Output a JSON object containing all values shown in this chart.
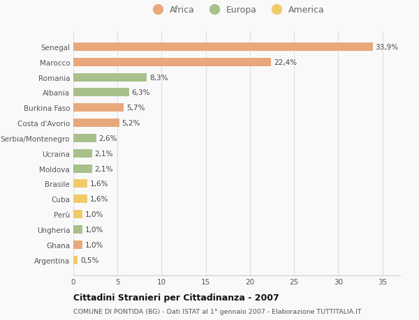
{
  "categories": [
    "Senegal",
    "Marocco",
    "Romania",
    "Albania",
    "Burkina Faso",
    "Costa d'Avorio",
    "Serbia/Montenegro",
    "Ucraina",
    "Moldova",
    "Brasile",
    "Cuba",
    "Perù",
    "Ungheria",
    "Ghana",
    "Argentina"
  ],
  "values": [
    33.9,
    22.4,
    8.3,
    6.3,
    5.7,
    5.2,
    2.6,
    2.1,
    2.1,
    1.6,
    1.6,
    1.0,
    1.0,
    1.0,
    0.5
  ],
  "labels": [
    "33,9%",
    "22,4%",
    "8,3%",
    "6,3%",
    "5,7%",
    "5,2%",
    "2,6%",
    "2,1%",
    "2,1%",
    "1,6%",
    "1,6%",
    "1,0%",
    "1,0%",
    "1,0%",
    "0,5%"
  ],
  "continents": [
    "Africa",
    "Africa",
    "Europa",
    "Europa",
    "Africa",
    "Africa",
    "Europa",
    "Europa",
    "Europa",
    "America",
    "America",
    "America",
    "Europa",
    "Africa",
    "America"
  ],
  "colors": {
    "Africa": "#E8A87C",
    "Europa": "#A8C08A",
    "America": "#F0CB6A"
  },
  "title": "Cittadini Stranieri per Cittadinanza - 2007",
  "subtitle": "COMUNE DI PONTIDA (BG) - Dati ISTAT al 1° gennaio 2007 - Elaborazione TUTTITALIA.IT",
  "xlim": [
    0,
    37
  ],
  "xticks": [
    0,
    5,
    10,
    15,
    20,
    25,
    30,
    35
  ],
  "background_color": "#f9f9f9",
  "grid_color": "#e0e0e0",
  "bar_height": 0.55
}
